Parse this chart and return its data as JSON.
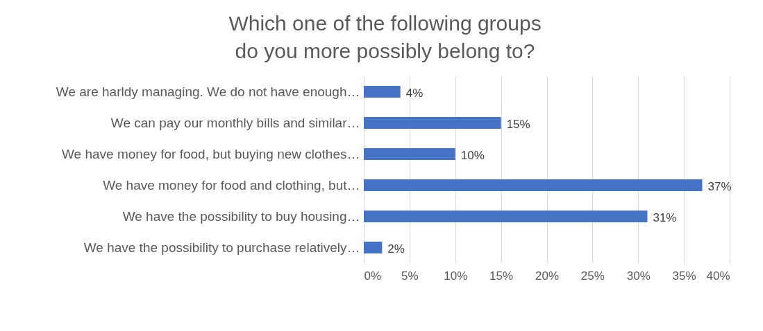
{
  "chart_data": {
    "type": "bar",
    "orientation": "horizontal",
    "title": "Which one of the following groups do you more possibly belong to?",
    "categories": [
      "We are harldy managing. We do not have enough…",
      "We can pay our monthly bills and similar…",
      "We have money for food, but buying new clothes…",
      "We have money for food and clothing, but…",
      "We have the possibility to buy housing…",
      "We have the possibility to purchase relatively…"
    ],
    "values": [
      4,
      15,
      10,
      37,
      31,
      2
    ],
    "value_labels": [
      "4%",
      "15%",
      "10%",
      "37%",
      "31%",
      "2%"
    ],
    "color": "#4472c4",
    "xlim": [
      0,
      40
    ],
    "xticks": [
      {
        "value": 0,
        "label": "0%"
      },
      {
        "value": 5,
        "label": "5%"
      },
      {
        "value": 10,
        "label": "10%"
      },
      {
        "value": 15,
        "label": "15%"
      },
      {
        "value": 20,
        "label": "20%"
      },
      {
        "value": 25,
        "label": "25%"
      },
      {
        "value": 30,
        "label": "30%"
      },
      {
        "value": 35,
        "label": "35%"
      },
      {
        "value": 40,
        "label": "40%"
      }
    ],
    "grid": "x"
  }
}
